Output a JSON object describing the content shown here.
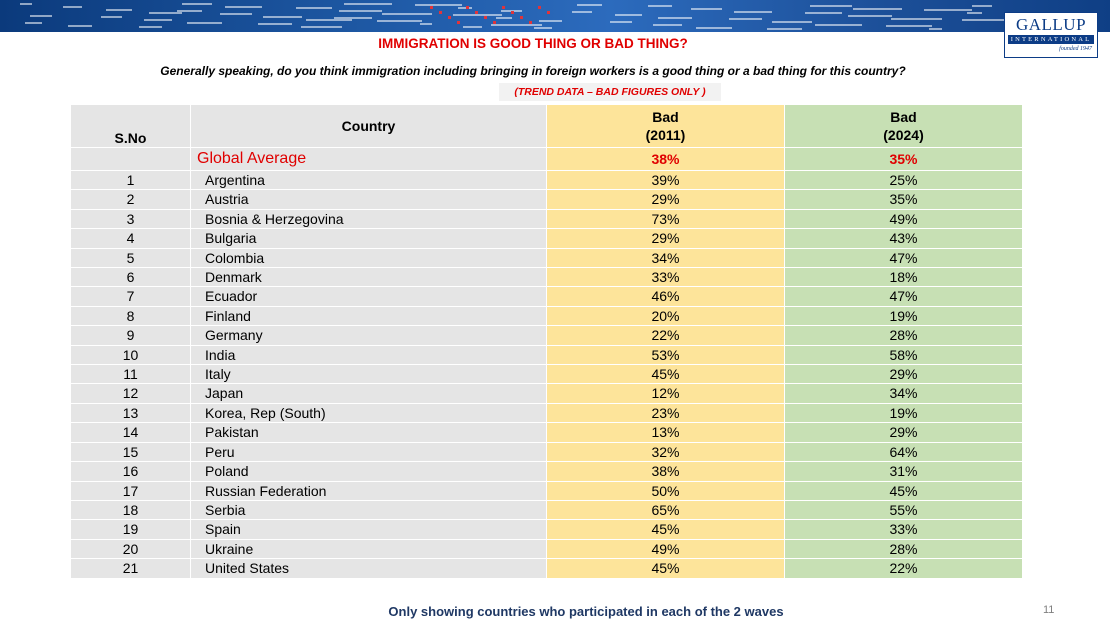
{
  "header": {
    "logo_main": "GALLUP",
    "logo_sub": "INTERNATIONAL",
    "logo_founded": "founded 1947"
  },
  "title": "IMMIGRATION IS GOOD THING OR BAD THING?",
  "question": "Generally speaking, do you think immigration including bringing in foreign workers is a good thing or a bad thing for this country?",
  "trend_note": "(TREND DATA – BAD FIGURES ONLY )",
  "table": {
    "headers": {
      "sno": "S.No",
      "country": "Country",
      "col_2011_line1": "Bad",
      "col_2011_line2": "(2011)",
      "col_2024_line1": "Bad",
      "col_2024_line2": "(2024)"
    },
    "global_average": {
      "label": "Global Average",
      "v2011": "38%",
      "v2024": "35%"
    },
    "rows": [
      {
        "sno": "1",
        "country": "Argentina",
        "v2011": "39%",
        "v2024": "25%"
      },
      {
        "sno": "2",
        "country": "Austria",
        "v2011": "29%",
        "v2024": "35%"
      },
      {
        "sno": "3",
        "country": "Bosnia & Herzegovina",
        "v2011": "73%",
        "v2024": "49%"
      },
      {
        "sno": "4",
        "country": "Bulgaria",
        "v2011": "29%",
        "v2024": "43%"
      },
      {
        "sno": "5",
        "country": "Colombia",
        "v2011": "34%",
        "v2024": "47%"
      },
      {
        "sno": "6",
        "country": "Denmark",
        "v2011": "33%",
        "v2024": "18%"
      },
      {
        "sno": "7",
        "country": "Ecuador",
        "v2011": "46%",
        "v2024": "47%"
      },
      {
        "sno": "8",
        "country": "Finland",
        "v2011": "20%",
        "v2024": "19%"
      },
      {
        "sno": "9",
        "country": "Germany",
        "v2011": "22%",
        "v2024": "28%"
      },
      {
        "sno": "10",
        "country": "India",
        "v2011": "53%",
        "v2024": "58%"
      },
      {
        "sno": "11",
        "country": "Italy",
        "v2011": "45%",
        "v2024": "29%"
      },
      {
        "sno": "12",
        "country": "Japan",
        "v2011": "12%",
        "v2024": "34%"
      },
      {
        "sno": "13",
        "country": "Korea, Rep (South)",
        "v2011": "23%",
        "v2024": "19%"
      },
      {
        "sno": "14",
        "country": "Pakistan",
        "v2011": "13%",
        "v2024": "29%"
      },
      {
        "sno": "15",
        "country": "Peru",
        "v2011": "32%",
        "v2024": "64%"
      },
      {
        "sno": "16",
        "country": "Poland",
        "v2011": "38%",
        "v2024": "31%"
      },
      {
        "sno": "17",
        "country": "Russian Federation",
        "v2011": "50%",
        "v2024": "45%"
      },
      {
        "sno": "18",
        "country": "Serbia",
        "v2011": "65%",
        "v2024": "55%"
      },
      {
        "sno": "19",
        "country": "Spain",
        "v2011": "45%",
        "v2024": "33%"
      },
      {
        "sno": "20",
        "country": "Ukraine",
        "v2011": "49%",
        "v2024": "28%"
      },
      {
        "sno": "21",
        "country": "United States",
        "v2011": "45%",
        "v2024": "22%"
      }
    ]
  },
  "footer_note": "Only showing countries who participated in each of the 2 waves",
  "page_number": "11",
  "colors": {
    "title_red": "#e00000",
    "col_2011_bg": "#fde49a",
    "col_2024_bg": "#c7e0b4",
    "row_bg": "#e5e5e5",
    "banner_blue": "#1f5aa6",
    "footer_navy": "#1f3864"
  }
}
